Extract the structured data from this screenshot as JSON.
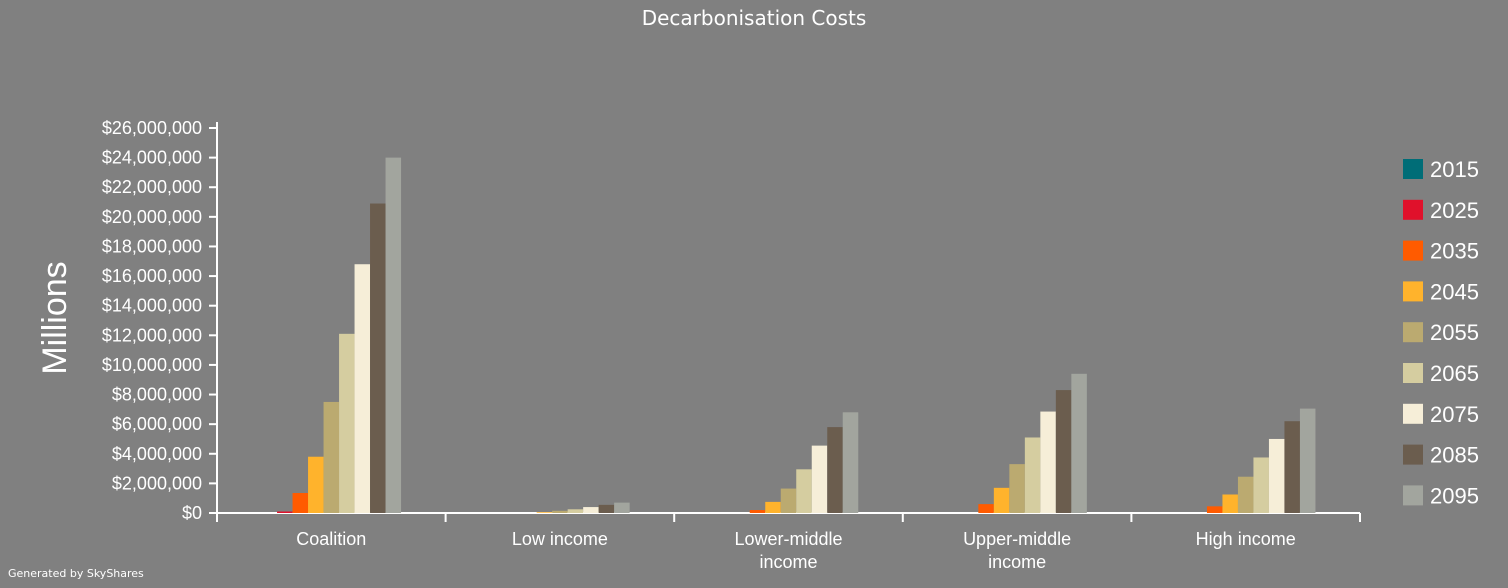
{
  "chart_data": {
    "type": "bar",
    "title": "Decarbonisation Costs",
    "xlabel": "",
    "ylabel": "Millions",
    "ylim": [
      0,
      26000000
    ],
    "yticks": [
      "$0",
      "$2,000,000",
      "$4,000,000",
      "$6,000,000",
      "$8,000,000",
      "$10,000,000",
      "$12,000,000",
      "$14,000,000",
      "$16,000,000",
      "$18,000,000",
      "$20,000,000",
      "$22,000,000",
      "$24,000,000",
      "$26,000,000"
    ],
    "categories": [
      [
        "Coalition"
      ],
      [
        "Low income"
      ],
      [
        "Lower-middle",
        "income"
      ],
      [
        "Upper-middle",
        "income"
      ],
      [
        "High income"
      ]
    ],
    "legend_position": "right",
    "grid": false,
    "series": [
      {
        "name": "2015",
        "color": "#006d77",
        "values": [
          0,
          0,
          0,
          0,
          0
        ]
      },
      {
        "name": "2025",
        "color": "#e0112b",
        "values": [
          100000,
          0,
          0,
          0,
          0
        ]
      },
      {
        "name": "2035",
        "color": "#ff5b00",
        "values": [
          1350000,
          0,
          200000,
          600000,
          450000
        ]
      },
      {
        "name": "2045",
        "color": "#ffb32c",
        "values": [
          3800000,
          50000,
          750000,
          1700000,
          1250000
        ]
      },
      {
        "name": "2055",
        "color": "#bbaa70",
        "values": [
          7500000,
          150000,
          1650000,
          3300000,
          2450000
        ]
      },
      {
        "name": "2065",
        "color": "#d5cda0",
        "values": [
          12100000,
          250000,
          2950000,
          5100000,
          3750000
        ]
      },
      {
        "name": "2075",
        "color": "#f6eed8",
        "values": [
          16800000,
          400000,
          4550000,
          6850000,
          5000000
        ]
      },
      {
        "name": "2085",
        "color": "#6b5d4e",
        "values": [
          20900000,
          550000,
          5800000,
          8300000,
          6200000
        ]
      },
      {
        "name": "2095",
        "color": "#a2a59e",
        "values": [
          24000000,
          700000,
          6800000,
          9400000,
          7050000
        ]
      }
    ]
  },
  "footer": "Generated by SkyShares"
}
